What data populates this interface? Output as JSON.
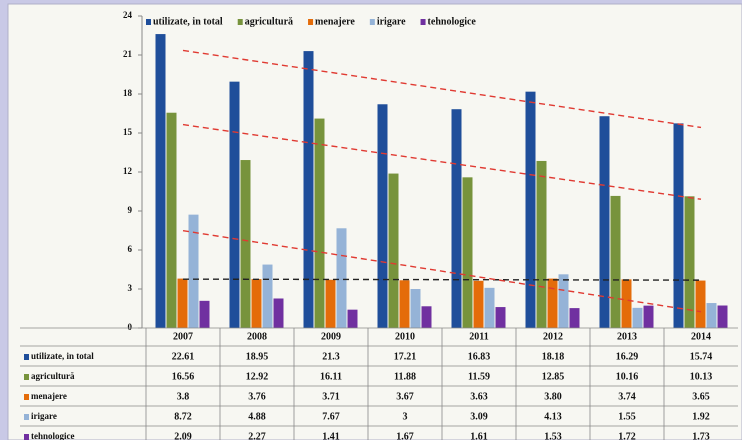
{
  "chart_data": {
    "type": "bar",
    "categories": [
      "2007",
      "2008",
      "2009",
      "2010",
      "2011",
      "2012",
      "2013",
      "2014"
    ],
    "series": [
      {
        "name": "utilizate, in total",
        "color": "#1f4e9a",
        "values": [
          22.61,
          18.95,
          21.3,
          17.21,
          16.83,
          18.18,
          16.29,
          15.74
        ],
        "trendline": "#e03a32"
      },
      {
        "name": "agricultură",
        "color": "#77933c",
        "values": [
          16.56,
          12.92,
          16.11,
          11.88,
          11.59,
          12.85,
          10.16,
          10.13
        ],
        "trendline": "#e03a32"
      },
      {
        "name": "menajere",
        "color": "#e46c0a",
        "values": [
          3.8,
          3.76,
          3.71,
          3.67,
          3.63,
          3.8,
          3.74,
          3.65
        ],
        "value_labels": [
          "3.8",
          "3.76",
          "3.71",
          "3.67",
          "3.63",
          "3.80",
          "3.74",
          "3.65"
        ],
        "trendline": "#222222"
      },
      {
        "name": "irigare",
        "color": "#95b3d7",
        "values": [
          8.72,
          4.88,
          7.67,
          3,
          3.09,
          4.13,
          1.55,
          1.92
        ],
        "trendline": "#e03a32"
      },
      {
        "name": "tehnologice",
        "color": "#7030a0",
        "values": [
          2.09,
          2.27,
          1.41,
          1.67,
          1.61,
          1.53,
          1.72,
          1.73
        ]
      }
    ],
    "ylim": [
      0,
      24
    ],
    "yticks": [
      0,
      3,
      6,
      9,
      12,
      15,
      18,
      21,
      24
    ],
    "legend": "top"
  }
}
